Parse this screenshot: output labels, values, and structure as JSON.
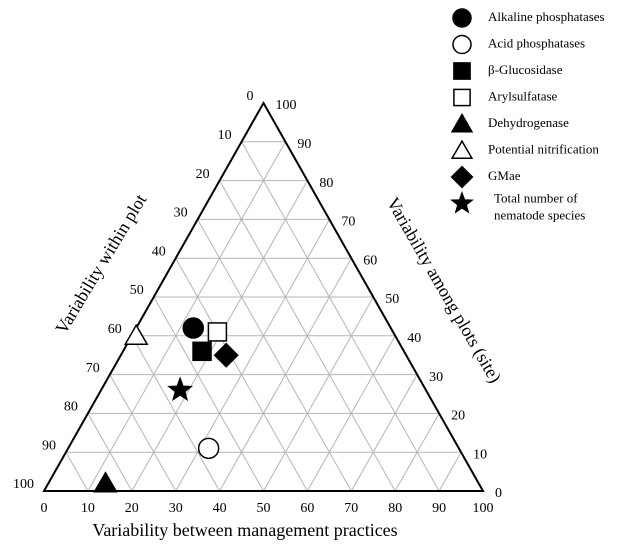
{
  "chart_data": {
    "type": "ternary-scatter",
    "axes": {
      "bottom": {
        "label": "Variability between management practices",
        "ticks": [
          0,
          10,
          20,
          30,
          40,
          50,
          60,
          70,
          80,
          90,
          100
        ]
      },
      "left": {
        "label": "Variability within plot",
        "ticks": [
          0,
          10,
          20,
          30,
          40,
          50,
          60,
          70,
          80,
          90,
          100
        ]
      },
      "right": {
        "label": "Variability among plots (site)",
        "ticks": [
          0,
          10,
          20,
          30,
          40,
          50,
          60,
          70,
          80,
          90,
          100
        ]
      }
    },
    "grid": true,
    "legend_position": "top-right",
    "series": [
      {
        "name": "Alkaline phosphatases",
        "marker": "circle-filled",
        "color": "#000000",
        "point": {
          "management": 13,
          "within": 45,
          "site": 42
        }
      },
      {
        "name": "Acid phosphatases",
        "marker": "circle-open",
        "color": "#000000",
        "point": {
          "management": 32,
          "within": 57,
          "site": 11
        }
      },
      {
        "name": "β-Glucosidase",
        "marker": "square-filled",
        "color": "#000000",
        "point": {
          "management": 18,
          "within": 46,
          "site": 36
        }
      },
      {
        "name": "Arylsulfatase",
        "marker": "square-open",
        "color": "#000000",
        "point": {
          "management": 19,
          "within": 40,
          "site": 41
        }
      },
      {
        "name": "Dehydrogenase",
        "marker": "triangle-filled",
        "color": "#000000",
        "point": {
          "management": 13,
          "within": 85,
          "site": 2
        }
      },
      {
        "name": "Potential nitrification",
        "marker": "triangle-open",
        "color": "#000000",
        "point": {
          "management": 1,
          "within": 59,
          "site": 40
        }
      },
      {
        "name": "GMae",
        "marker": "diamond-filled",
        "color": "#000000",
        "point": {
          "management": 24,
          "within": 41,
          "site": 35
        }
      },
      {
        "name": "Total number of nematode species",
        "label_lines": [
          "Total number of",
          "nematode species"
        ],
        "marker": "star-filled",
        "color": "#000000",
        "point": {
          "management": 18,
          "within": 56,
          "site": 26
        }
      }
    ]
  }
}
